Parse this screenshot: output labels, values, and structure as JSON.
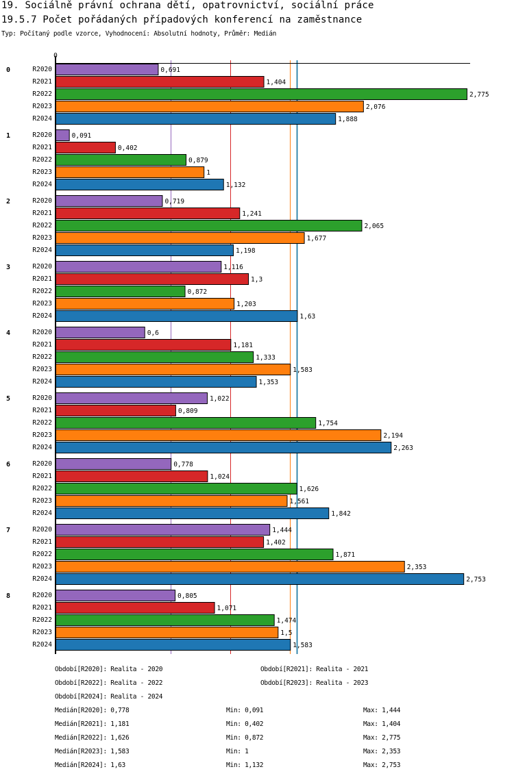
{
  "header": {
    "title": "19. Sociálně právní ochrana dětí, opatrovnictví, sociální práce",
    "subtitle": "19.5.7 Počet pořádaných případových konferencí na zaměstnance",
    "meta": "Typ: Počítaný podle vzorce, Vyhodnocení: Absolutní hodnoty, Průměr: Medián"
  },
  "chart_data": {
    "type": "bar",
    "orientation": "horizontal",
    "title": "19.5.7 Počet pořádaných případových konferencí na zaměstnance",
    "xlabel": "",
    "ylabel": "",
    "x_tick_labels": [
      "0"
    ],
    "xlim": [
      0,
      2.83
    ],
    "categories": [
      "0",
      "1",
      "2",
      "3",
      "4",
      "5",
      "6",
      "7",
      "8"
    ],
    "series": [
      {
        "name": "R2020",
        "color": "#9467bd",
        "values": [
          0.691,
          0.091,
          0.719,
          1.116,
          0.6,
          1.022,
          0.778,
          1.444,
          0.805
        ],
        "labels": [
          "0,691",
          "0,091",
          "0,719",
          "1,116",
          "0,6",
          "1,022",
          "0,778",
          "1,444",
          "0,805"
        ]
      },
      {
        "name": "R2021",
        "color": "#d62728",
        "values": [
          1.404,
          0.402,
          1.241,
          1.3,
          1.181,
          0.809,
          1.024,
          1.402,
          1.071
        ],
        "labels": [
          "1,404",
          "0,402",
          "1,241",
          "1,3",
          "1,181",
          "0,809",
          "1,024",
          "1,402",
          "1,071"
        ]
      },
      {
        "name": "R2022",
        "color": "#2ca02c",
        "values": [
          2.775,
          0.879,
          2.065,
          0.872,
          1.333,
          1.754,
          1.626,
          1.871,
          1.474
        ],
        "labels": [
          "2,775",
          "0,879",
          "2,065",
          "0,872",
          "1,333",
          "1,754",
          "1,626",
          "1,871",
          "1,474"
        ]
      },
      {
        "name": "R2023",
        "color": "#ff7f0e",
        "values": [
          2.076,
          1,
          1.677,
          1.203,
          1.583,
          2.194,
          1.561,
          2.353,
          1.5
        ],
        "labels": [
          "2,076",
          "1",
          "1,677",
          "1,203",
          "1,583",
          "2,194",
          "1,561",
          "2,353",
          "1,5"
        ]
      },
      {
        "name": "R2024",
        "color": "#1f77b4",
        "values": [
          1.888,
          1.132,
          1.198,
          1.63,
          1.353,
          2.263,
          1.842,
          2.753,
          1.583
        ],
        "labels": [
          "1,888",
          "1,132",
          "1,198",
          "1,63",
          "1,353",
          "2,263",
          "1,842",
          "2,753",
          "1,583"
        ]
      }
    ],
    "median_lines": [
      {
        "series": "R2020",
        "value": 0.778,
        "color": "#9467bd"
      },
      {
        "series": "R2021",
        "value": 1.181,
        "color": "#d62728"
      },
      {
        "series": "R2023",
        "value": 1.583,
        "color": "#ff7f0e"
      },
      {
        "series": "R2022",
        "value": 1.626,
        "color": "#2ca02c"
      },
      {
        "series": "R2024",
        "value": 1.63,
        "color": "#1f77b4"
      }
    ],
    "grid": false,
    "legend": "bottom"
  },
  "legend": {
    "periods": [
      "Období[R2020]: Realita - 2020",
      "Období[R2021]: Realita - 2021",
      "Období[R2022]: Realita - 2022",
      "Období[R2023]: Realita - 2023",
      "Období[R2024]: Realita - 2024"
    ],
    "stats": [
      {
        "median": "Medián[R2020]: 0,778",
        "min": "Min: 0,091",
        "max": "Max: 1,444"
      },
      {
        "median": "Medián[R2021]: 1,181",
        "min": "Min: 0,402",
        "max": "Max: 1,404"
      },
      {
        "median": "Medián[R2022]: 1,626",
        "min": "Min: 0,872",
        "max": "Max: 2,775"
      },
      {
        "median": "Medián[R2023]: 1,583",
        "min": "Min: 1",
        "max": "Max: 2,353"
      },
      {
        "median": "Medián[R2024]: 1,63",
        "min": "Min: 1,132",
        "max": "Max: 2,753"
      }
    ]
  }
}
